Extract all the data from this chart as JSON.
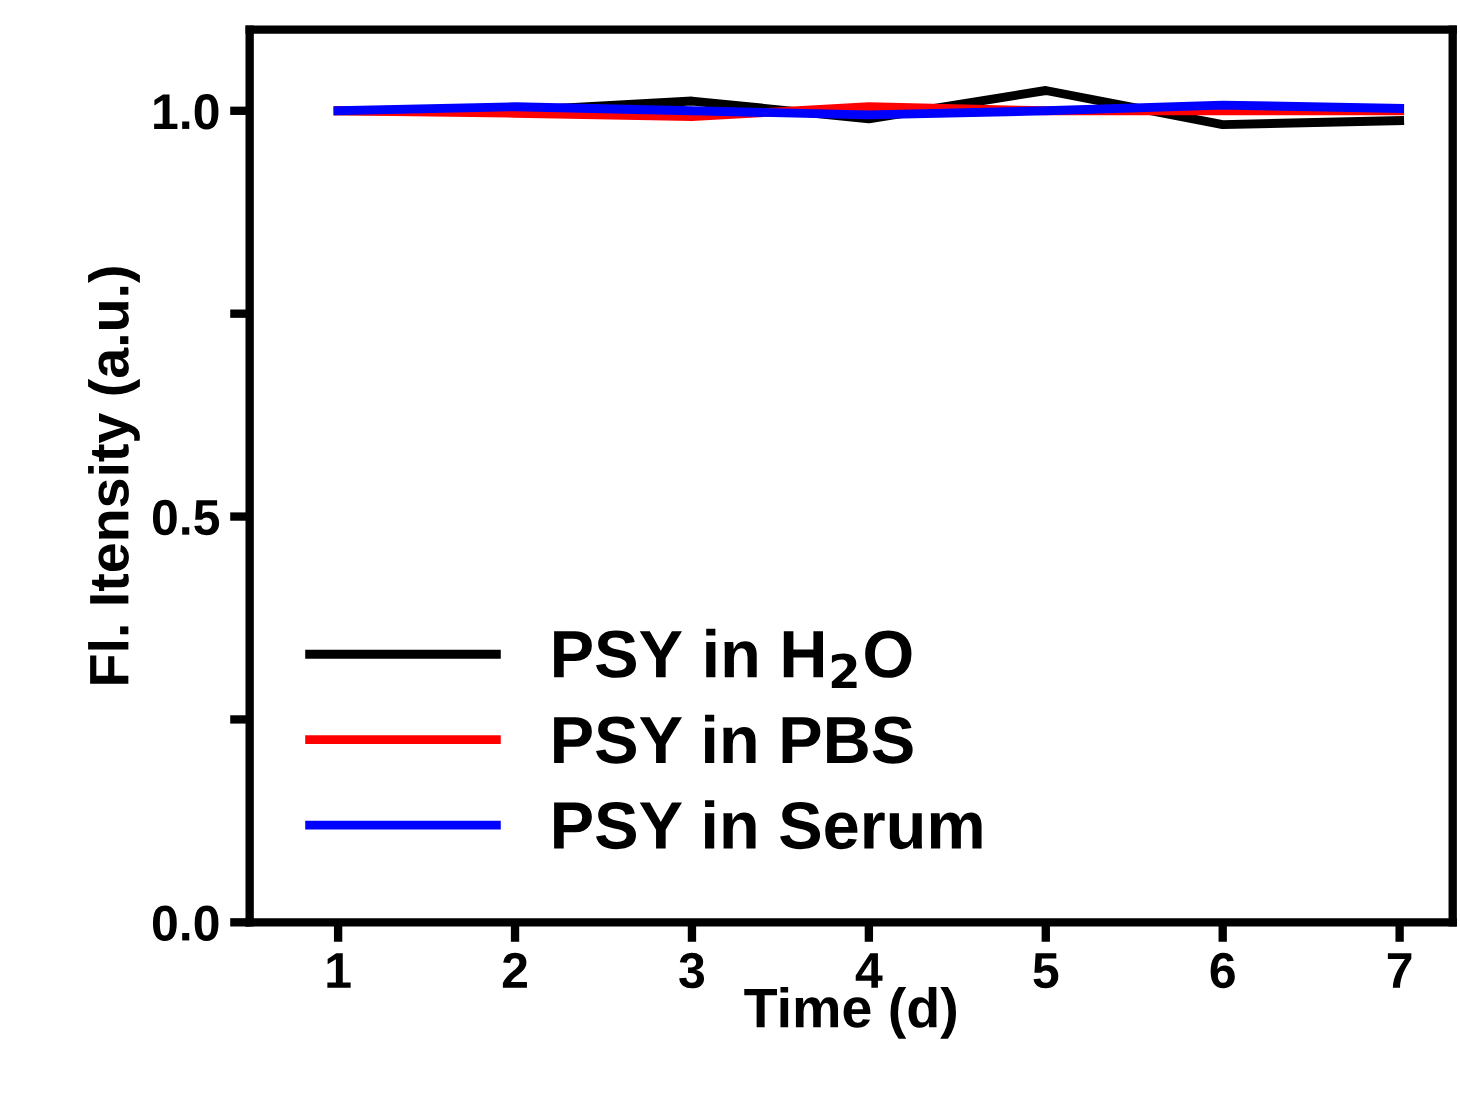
{
  "chart_data": {
    "type": "line",
    "xlabel": "Time (d)",
    "ylabel": "Fl. Itensity (a.u.)",
    "x": [
      1,
      2,
      3,
      4,
      5,
      6,
      7
    ],
    "series": [
      {
        "name": "PSY in H$_{2}$O",
        "color": "#000000",
        "values": [
          1.0,
          1.0,
          1.012,
          0.99,
          1.025,
          0.983,
          0.988
        ]
      },
      {
        "name": "PSY in PBS",
        "color": "#ff0000",
        "values": [
          1.0,
          0.997,
          0.993,
          1.005,
          1.0,
          1.0,
          1.0
        ]
      },
      {
        "name": "PSY in Serum",
        "color": "#0000ff",
        "values": [
          1.0,
          1.005,
          1.0,
          0.995,
          1.0,
          1.007,
          1.003
        ]
      }
    ],
    "xlim": [
      0.5,
      7.3
    ],
    "ylim": [
      0,
      1.1
    ],
    "xticks": [
      1,
      2,
      3,
      4,
      5,
      6,
      7
    ],
    "yticks": [
      {
        "value": 0,
        "label": "0.0"
      },
      {
        "value": 0.25,
        "label": null
      },
      {
        "value": 0.5,
        "label": "0.5"
      },
      {
        "value": 0.75,
        "label": null
      },
      {
        "value": 1.0,
        "label": "1.0"
      }
    ],
    "legend": "bottom left",
    "grid": false,
    "marker": "none",
    "line_style": "solid"
  }
}
